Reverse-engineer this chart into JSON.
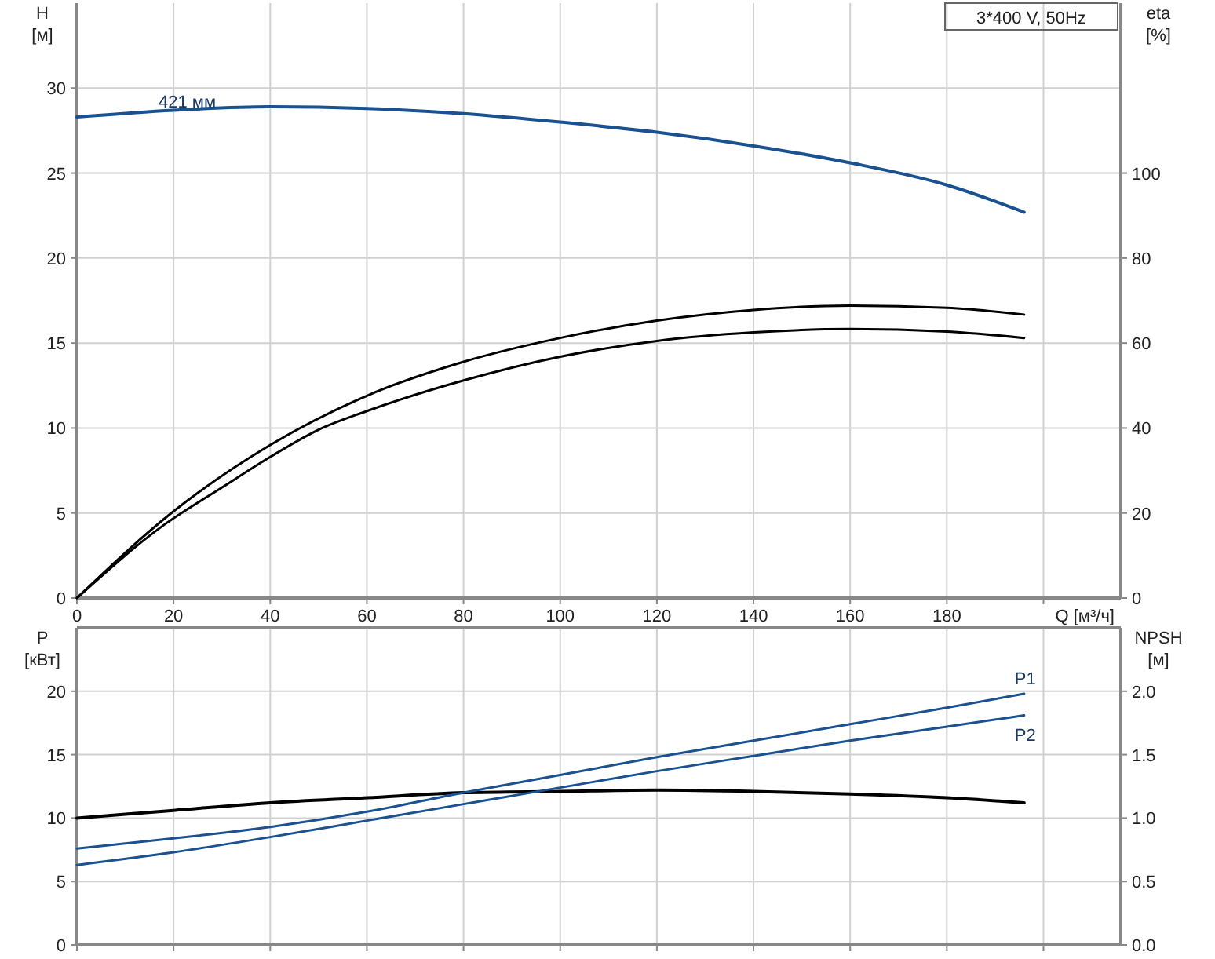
{
  "chart_data": [
    {
      "type": "line",
      "title": "3*400 V, 50Hz",
      "xlabel": "Q [м³/ч]",
      "ylabel": "H [м]",
      "y2label": "eta [%]",
      "xlim": [
        0,
        216
      ],
      "xticks": [
        0,
        20,
        40,
        60,
        80,
        100,
        120,
        140,
        160,
        180,
        {
          "value": 200,
          "label": null
        }
      ],
      "ylim": [
        0,
        35
      ],
      "yticks": [
        0,
        5,
        10,
        15,
        20,
        25,
        30
      ],
      "y2lim": [
        0,
        140
      ],
      "y2ticks": [
        0,
        20,
        40,
        60,
        80,
        100
      ],
      "grid": true,
      "series": [
        {
          "name": "421 мм",
          "color": "#1a5190",
          "x": [
            0,
            20,
            40,
            60,
            80,
            100,
            120,
            140,
            160,
            180,
            196
          ],
          "values": [
            28.3,
            28.7,
            28.9,
            28.8,
            28.5,
            28.0,
            27.4,
            26.6,
            25.6,
            24.3,
            22.7
          ]
        },
        {
          "color": "#000000",
          "axis": "y2",
          "x": [
            0,
            18,
            30,
            40,
            50,
            60,
            80,
            100,
            120,
            140,
            160,
            180,
            196
          ],
          "values": [
            0,
            17.2,
            26,
            33.2,
            39.6,
            44,
            51.2,
            56.8,
            60.5,
            62.5,
            63.3,
            62.7,
            61.2
          ]
        },
        {
          "color": "#000000",
          "axis": "y2",
          "x": [
            0,
            20,
            40,
            60,
            80,
            100,
            120,
            140,
            160,
            180,
            196
          ],
          "values": [
            0,
            20.4,
            36,
            47.6,
            55.6,
            61.2,
            65.3,
            67.8,
            68.8,
            68.3,
            66.7
          ]
        }
      ]
    },
    {
      "type": "line",
      "ylabel": "P [кВт]",
      "y2label": "NPSH [м]",
      "xlim": [
        0,
        216
      ],
      "xticks": [
        0,
        20,
        40,
        60,
        80,
        100,
        120,
        140,
        160,
        180,
        200
      ],
      "ylim": [
        0,
        25
      ],
      "yticks": [
        0,
        5,
        10,
        15,
        20
      ],
      "y2lim": [
        0,
        2.5
      ],
      "y2ticks": [
        {
          "value": 0,
          "label": "0.0"
        },
        {
          "value": 0.5,
          "label": "0.5"
        },
        {
          "value": 1,
          "label": "1.0"
        },
        {
          "value": 1.5,
          "label": "1.5"
        },
        {
          "value": 2,
          "label": "2.0"
        }
      ],
      "grid": true,
      "tick_labels": "y",
      "series": [
        {
          "color": "#000000",
          "axis": "y2",
          "x": [
            0,
            20,
            40,
            60,
            80,
            100,
            120,
            140,
            160,
            180,
            196
          ],
          "values": [
            1.0,
            1.06,
            1.12,
            1.16,
            1.2,
            1.21,
            1.22,
            1.21,
            1.19,
            1.16,
            1.12
          ]
        },
        {
          "name": "P1",
          "color": "#1a5190",
          "x": [
            0,
            20,
            40,
            60,
            80,
            100,
            120,
            140,
            160,
            180,
            196
          ],
          "values": [
            7.6,
            8.4,
            9.3,
            10.5,
            12.0,
            13.4,
            14.8,
            16.1,
            17.4,
            18.7,
            19.8
          ]
        },
        {
          "name": "P2",
          "color": "#1a5190",
          "x": [
            0,
            20,
            40,
            60,
            80,
            100,
            120,
            140,
            160,
            180,
            196
          ],
          "values": [
            6.3,
            7.3,
            8.5,
            9.8,
            11.1,
            12.4,
            13.7,
            14.9,
            16.1,
            17.2,
            18.1
          ]
        }
      ]
    }
  ]
}
